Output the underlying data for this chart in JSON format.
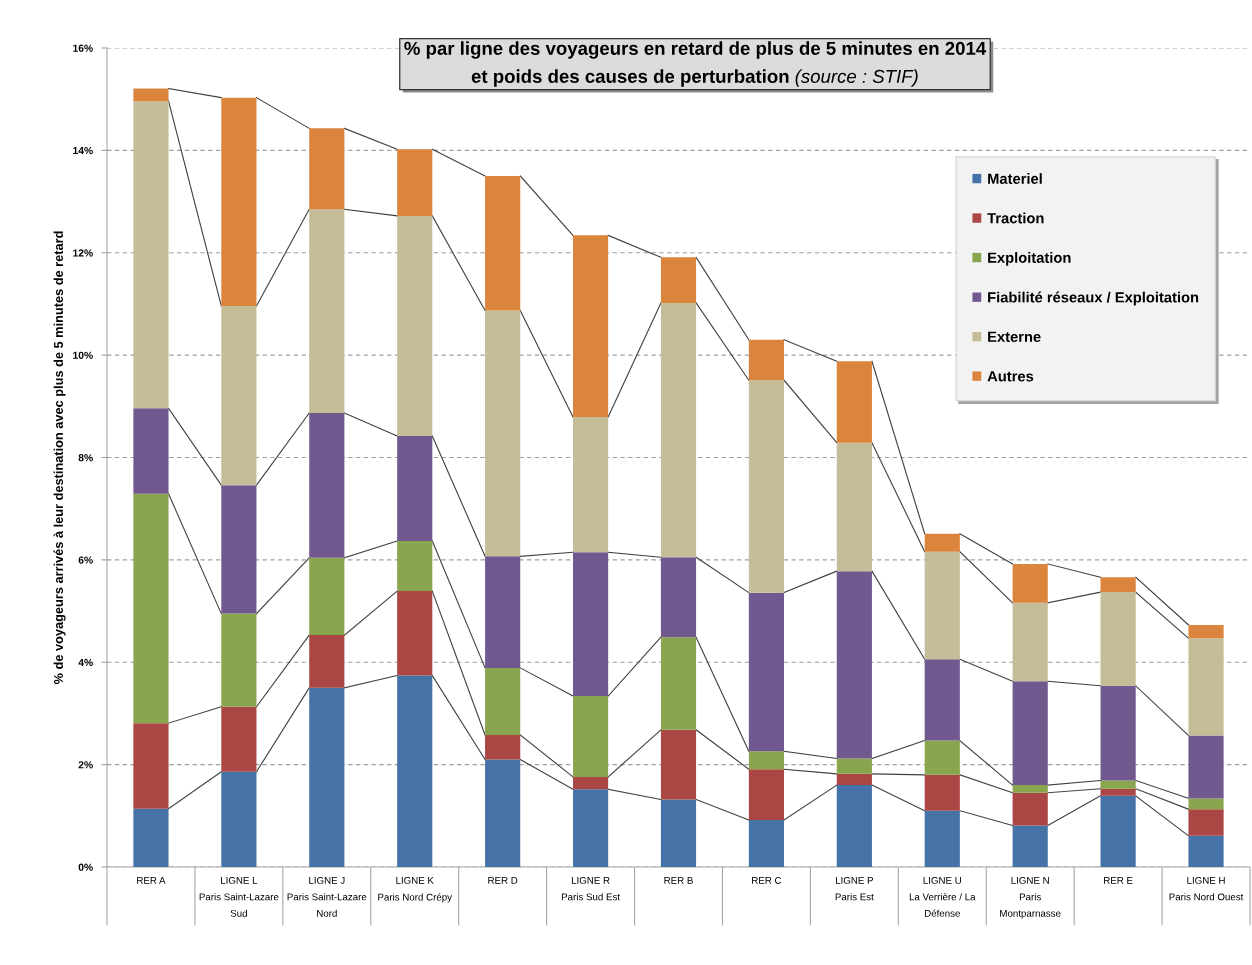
{
  "chart_data": {
    "type": "bar",
    "stacked": true,
    "title": "% par ligne des voyageurs en retard de plus de 5 minutes en 2014",
    "subtitle": "et poids des causes de perturbation",
    "annotations": [
      "(source : STIF)"
    ],
    "ylabel": "% de voyageurs arrivés à leur destination avec plus de 5 minutes de retard",
    "categories": [
      "RER A",
      "LIGNE L\nParis Saint-Lazare\nSud",
      "LIGNE J\nParis Saint-Lazare\nNord",
      "LIGNE K\nParis Nord Crépy",
      "RER D",
      "LIGNE R\nParis Sud Est",
      "RER B",
      "RER C",
      "LIGNE P\nParis Est",
      "LIGNE U\nLa Verrière / La\nDéfense",
      "LIGNE N\nParis\nMontparnasse",
      "RER E",
      "LIGNE H\nParis Nord Ouest"
    ],
    "series": [
      {
        "name": "Materiel",
        "color": "#4572a7",
        "values": [
          1.14,
          1.86,
          3.5,
          3.74,
          2.1,
          1.52,
          1.32,
          0.92,
          1.6,
          1.1,
          0.81,
          1.39,
          0.61
        ]
      },
      {
        "name": "Traction",
        "color": "#aa4643",
        "values": [
          1.67,
          1.27,
          1.03,
          1.65,
          0.48,
          0.24,
          1.36,
          0.99,
          0.22,
          0.7,
          0.64,
          0.14,
          0.52
        ]
      },
      {
        "name": "Exploitation",
        "color": "#89a54e",
        "values": [
          4.48,
          1.82,
          1.51,
          0.98,
          1.31,
          1.58,
          1.81,
          0.35,
          0.3,
          0.67,
          0.15,
          0.16,
          0.21
        ]
      },
      {
        "name": "Fiabilité réseaux / Exploitation",
        "color": "#71588f",
        "values": [
          1.67,
          2.51,
          2.83,
          2.05,
          2.18,
          2.81,
          1.56,
          3.1,
          3.66,
          1.59,
          2.03,
          1.85,
          1.23
        ]
      },
      {
        "name": "Externe",
        "color": "#c4bd97",
        "values": [
          6.0,
          3.5,
          3.98,
          4.3,
          4.8,
          2.64,
          4.97,
          4.15,
          2.51,
          2.1,
          1.53,
          1.83,
          1.9
        ]
      },
      {
        "name": "Autres",
        "color": "#db843d",
        "values": [
          0.25,
          4.07,
          1.58,
          1.3,
          2.63,
          3.55,
          0.89,
          0.79,
          1.59,
          0.35,
          0.76,
          0.29,
          0.26
        ]
      }
    ],
    "ylim": [
      0,
      16
    ],
    "yticks": [
      {
        "value": 0,
        "label": "0%"
      },
      {
        "value": 2,
        "label": "2%"
      },
      {
        "value": 4,
        "label": "4%"
      },
      {
        "value": 6,
        "label": "6%"
      },
      {
        "value": 8,
        "label": "8%"
      },
      {
        "value": 10,
        "label": "10%"
      },
      {
        "value": 12,
        "label": "12%"
      },
      {
        "value": 14,
        "label": "14%"
      },
      {
        "value": 16,
        "label": "16%"
      }
    ],
    "grid": "y",
    "legend": "top right"
  }
}
